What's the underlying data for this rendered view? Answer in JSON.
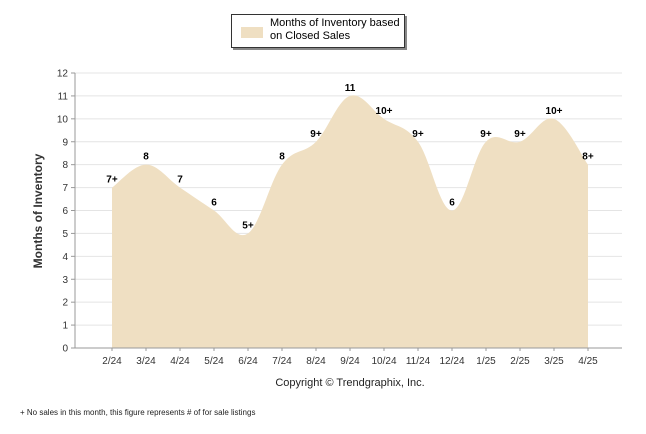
{
  "legend": {
    "label": "Months of Inventory based on Closed Sales",
    "swatch_color": "#efdfc2"
  },
  "copyright": "Copyright © Trendgraphix, Inc.",
  "footnote": "+ No sales in this month, this figure represents # of for sale listings",
  "chart_data": {
    "type": "area",
    "title": "",
    "xlabel": "",
    "ylabel": "Months of Inventory",
    "ylim": [
      0,
      12
    ],
    "yticks": [
      0,
      1,
      2,
      3,
      4,
      5,
      6,
      7,
      8,
      9,
      10,
      11,
      12
    ],
    "grid": true,
    "legend_placement": "top-center",
    "fill_color": "#efdfc2",
    "categories": [
      "2/24",
      "3/24",
      "4/24",
      "5/24",
      "6/24",
      "7/24",
      "8/24",
      "9/24",
      "10/24",
      "11/24",
      "12/24",
      "1/25",
      "2/25",
      "3/25",
      "4/25"
    ],
    "series": [
      {
        "name": "Months of Inventory based on Closed Sales",
        "values": [
          7,
          8,
          7,
          6,
          5,
          8,
          9,
          11,
          10,
          9,
          6,
          9,
          9,
          10,
          8
        ],
        "labels": [
          "7+",
          "8",
          "7",
          "6",
          "5+",
          "8",
          "9+",
          "11",
          "10+",
          "9+",
          "6",
          "9+",
          "9+",
          "10+",
          "8+"
        ]
      }
    ]
  }
}
